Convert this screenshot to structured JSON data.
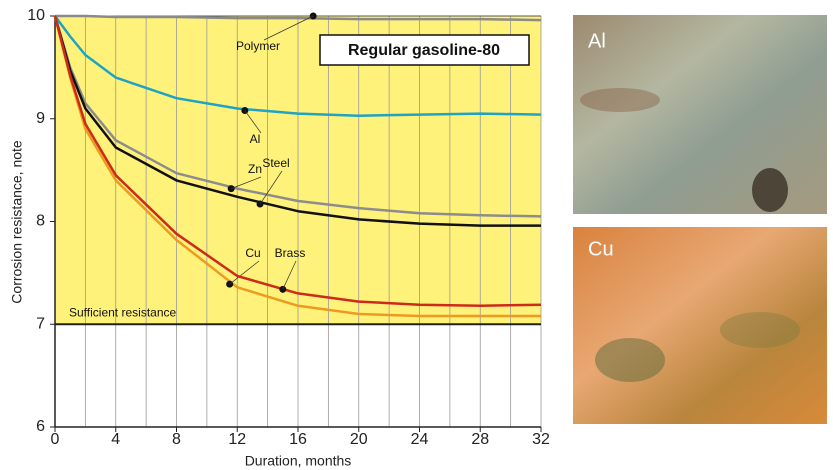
{
  "chart_data": {
    "type": "line",
    "title": "Regular gasoline-80",
    "x_label": "Duration, months",
    "y_label": "Corrosion resistance, note",
    "threshold": {
      "value": 7,
      "label": "Sufficient resistance"
    },
    "fill_color": "#fff27a",
    "x": [
      0,
      1,
      2,
      4,
      8,
      12,
      16,
      20,
      24,
      28,
      32
    ],
    "series": [
      {
        "name": "Polymer",
        "color": "#8a8a8a",
        "values": [
          10,
          10,
          10,
          9.99,
          9.99,
          9.98,
          9.98,
          9.97,
          9.97,
          9.97,
          9.96
        ],
        "marker": {
          "x": 17,
          "y": 10
        }
      },
      {
        "name": "Al",
        "color": "#1ea3c4",
        "values": [
          10,
          9.8,
          9.62,
          9.4,
          9.2,
          9.1,
          9.05,
          9.03,
          9.04,
          9.05,
          9.04
        ],
        "marker": {
          "x": 12.5,
          "y": 9.08
        }
      },
      {
        "name": "Zn",
        "color": "#8c8c8c",
        "values": [
          10,
          9.5,
          9.15,
          8.79,
          8.47,
          8.32,
          8.2,
          8.13,
          8.08,
          8.06,
          8.05
        ],
        "marker": {
          "x": 11.6,
          "y": 8.32
        }
      },
      {
        "name": "Steel",
        "color": "#111111",
        "values": [
          10,
          9.47,
          9.1,
          8.72,
          8.4,
          8.24,
          8.1,
          8.02,
          7.98,
          7.96,
          7.96
        ],
        "marker": {
          "x": 13.5,
          "y": 8.17
        }
      },
      {
        "name": "Cu",
        "color": "#ee9a20",
        "values": [
          10,
          9.4,
          8.9,
          8.4,
          7.82,
          7.36,
          7.18,
          7.1,
          7.08,
          7.08,
          7.08
        ],
        "marker": {
          "x": 11.5,
          "y": 7.39
        }
      },
      {
        "name": "Brass",
        "color": "#cc2a1a",
        "values": [
          10,
          9.42,
          8.95,
          8.45,
          7.88,
          7.47,
          7.3,
          7.22,
          7.19,
          7.18,
          7.19
        ],
        "marker": {
          "x": 15,
          "y": 7.34
        }
      }
    ],
    "xlim": [
      0,
      32
    ],
    "xticks": [
      0,
      4,
      8,
      12,
      16,
      20,
      24,
      28,
      32
    ],
    "ylim": [
      6,
      10
    ],
    "yticks": [
      6,
      7,
      8,
      9,
      10
    ],
    "grid": true,
    "photos": [
      {
        "label": "Al"
      },
      {
        "label": "Cu"
      }
    ]
  }
}
